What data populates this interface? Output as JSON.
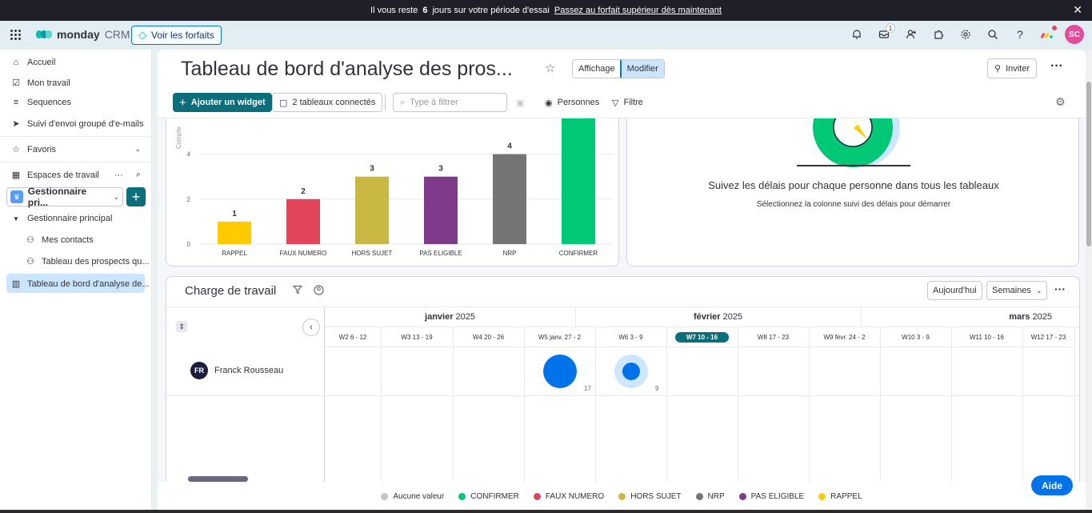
{
  "banner": {
    "text_before": "Il vous reste",
    "days": "6",
    "text_after": "jours sur votre période d'essai",
    "link": "Passez au forfait supérieur dès maintenant",
    "close": "✕"
  },
  "topbar": {
    "brand": "monday",
    "brand_suffix": "CRM",
    "plans_button": "Voir les forfaits",
    "inbox_count": "1",
    "avatar_initials": "SC",
    "colors": {
      "accent": "#0073ea",
      "teal": "#0b6e7a",
      "avatar": "#e44c9a"
    }
  },
  "sidebar": {
    "items": [
      {
        "label": "Accueil",
        "icon": "home-icon"
      },
      {
        "label": "Mon travail",
        "icon": "calendar-check-icon"
      },
      {
        "label": "Sequences",
        "icon": "sequence-icon"
      },
      {
        "label": "Suivi d'envoi groupé d'e-mails",
        "icon": "send-icon"
      }
    ],
    "favorites": "Favoris",
    "workspaces": "Espaces de travail",
    "workspace_name": "Gestionnaire pri...",
    "tree": {
      "folder": "Gestionnaire principal",
      "boards": [
        "Mes contacts",
        "Tableau des prospects qu...",
        "Tableau de bord d'analyse de..."
      ]
    }
  },
  "header": {
    "title": "Tableau de bord d'analyse des pros...",
    "view_label": "Affichage",
    "edit_label": "Modifier",
    "invite_label": "Inviter",
    "add_widget": "Ajouter un widget",
    "boards_connected": "2 tableaux connectés",
    "filter_placeholder": "Type à filtrer",
    "people": "Personnes",
    "filter": "Filtre"
  },
  "chart_data": {
    "type": "bar",
    "categories": [
      "RAPPEL",
      "FAUX NUMERO",
      "HORS SUJET",
      "PAS ELIGIBLE",
      "NRP",
      "CONFIRMER"
    ],
    "values": [
      1,
      2,
      3,
      3,
      4,
      null
    ],
    "colors": [
      "#ffcb00",
      "#e2445c",
      "#c9b843",
      "#7e3b8a",
      "#757575",
      "#00c875"
    ],
    "ylabel": "Compte",
    "ylim": [
      0,
      5.4
    ],
    "yticks": [
      0,
      2,
      4
    ],
    "grid": true
  },
  "tracking": {
    "title": "Suivez les délais pour chaque personne dans tous les tableaux",
    "subtitle": "Sélectionnez la colonne suivi des délais pour démarrer"
  },
  "workload": {
    "title": "Charge de travail",
    "today": "Aujourd'hui",
    "period": "Semaines",
    "months": [
      {
        "name": "janvier",
        "year": "2025"
      },
      {
        "name": "février",
        "year": "2025"
      },
      {
        "name": "mars",
        "year": "2025"
      }
    ],
    "weeks": [
      "W2 6 - 12",
      "W3 13 - 19",
      "W4 20 - 26",
      "W5 janv. 27 - 2",
      "W6 3 - 9",
      "W7 10 - 16",
      "W8 17 - 23",
      "W9 févr. 24 - 2",
      "W10 3 - 9",
      "W11 10 - 16",
      "W12 17 - 23"
    ],
    "current_week_index": 5,
    "person": {
      "initials": "FR",
      "name": "Franck Rousseau"
    },
    "bubbles": [
      {
        "week_index": 3,
        "value": "17"
      },
      {
        "week_index": 4,
        "value": "9"
      }
    ]
  },
  "legend": [
    {
      "label": "Aucune valeur",
      "color": "#c4c4c4"
    },
    {
      "label": "CONFIRMER",
      "color": "#00c875"
    },
    {
      "label": "FAUX NUMERO",
      "color": "#e2445c"
    },
    {
      "label": "HORS SUJET",
      "color": "#c9b843"
    },
    {
      "label": "NRP",
      "color": "#757575"
    },
    {
      "label": "PAS ELIGIBLE",
      "color": "#7e3b8a"
    },
    {
      "label": "RAPPEL",
      "color": "#ffcb00"
    }
  ],
  "help": "Aide"
}
